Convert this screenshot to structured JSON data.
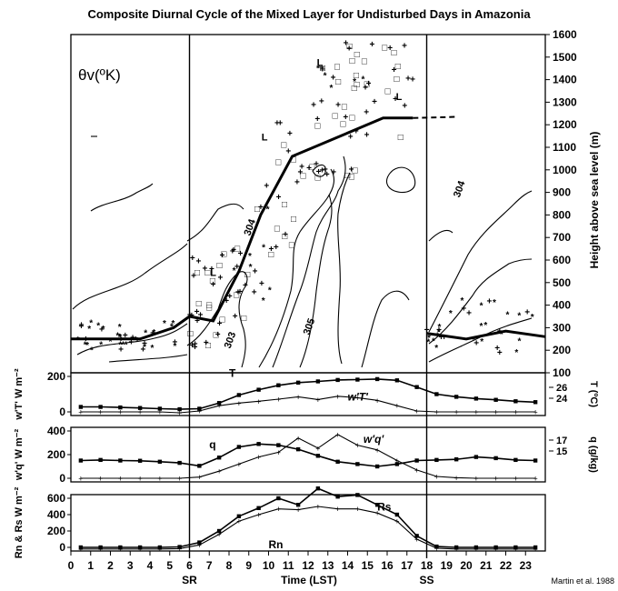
{
  "title": "Composite Diurnal Cycle of the Mixed Layer for Undisturbed Days in Amazonia",
  "credit": "Martin et al. 1988",
  "chart_data": [
    {
      "type": "line",
      "panel": "mixed-layer",
      "theta_label": "θv(ºK)",
      "ylabel": "Height above sea level (m)",
      "xlim": [
        0,
        24
      ],
      "ylim": [
        100,
        1600
      ],
      "yticks": [
        "100",
        "200",
        "300",
        "400",
        "500",
        "600",
        "700",
        "800",
        "900",
        "1000",
        "1100",
        "1200",
        "1300",
        "1400",
        "1500",
        "1600"
      ],
      "sr_label": "SR",
      "sr_x": 6,
      "ss_label": "SS",
      "ss_x": 18,
      "mixed_layer_top": {
        "x": [
          0,
          3.5,
          5.2,
          6.0,
          7.2,
          8.5,
          9.6,
          11.2,
          15.8,
          17.3
        ],
        "y": [
          250,
          250,
          300,
          350,
          330,
          550,
          800,
          1060,
          1230,
          1230
        ]
      },
      "mixed_layer_top_dashed": {
        "x": [
          17.3,
          19.5
        ],
        "y": [
          1230,
          1235
        ]
      },
      "night_layer_top": {
        "x": [
          18,
          20,
          22,
          24
        ],
        "y": [
          275,
          250,
          285,
          260
        ]
      },
      "contour_labels": [
        {
          "text": "304",
          "x": 9.2,
          "y": 740
        },
        {
          "text": "305",
          "x": 12.2,
          "y": 300
        },
        {
          "text": "303",
          "x": 8.2,
          "y": 240
        },
        {
          "text": "304",
          "x": 19.8,
          "y": 910
        }
      ],
      "inversion_marker": "L",
      "inversion_marks": [
        [
          7.2,
          530
        ],
        [
          9.8,
          1130
        ],
        [
          12.6,
          1460
        ],
        [
          16.6,
          1310
        ]
      ],
      "point_symbols": [
        "+",
        "□",
        "*"
      ]
    },
    {
      "type": "line",
      "panel": "temperature-flux",
      "ylabel": "w'T' W m⁻²",
      "ylim": [
        0,
        200
      ],
      "yticks": [
        "200",
        "0"
      ],
      "right_ticks": [
        "26",
        "24"
      ],
      "right_label": "T (ºC)",
      "series": [
        {
          "name": "T",
          "x": [
            0.5,
            1.5,
            2.5,
            3.5,
            4.5,
            5.5,
            6.5,
            7.5,
            8.5,
            9.5,
            10.5,
            11.5,
            12.5,
            13.5,
            14.5,
            15.5,
            16.5,
            17.5,
            18.5,
            19.5,
            20.5,
            21.5,
            22.5,
            23.5
          ],
          "y": [
            28,
            28,
            25,
            22,
            18,
            15,
            18,
            50,
            95,
            125,
            150,
            165,
            172,
            180,
            182,
            185,
            178,
            140,
            100,
            85,
            75,
            68,
            60,
            55
          ]
        },
        {
          "name": "w'T'",
          "x": [
            0.5,
            1.5,
            2.5,
            3.5,
            4.5,
            5.5,
            6.5,
            7.5,
            8.5,
            9.5,
            10.5,
            11.5,
            12.5,
            13.5,
            14.5,
            15.5,
            16.5,
            17.5,
            18.5,
            19.5,
            20.5,
            21.5,
            22.5,
            23.5
          ],
          "y": [
            0,
            0,
            0,
            0,
            0,
            -5,
            5,
            35,
            50,
            60,
            72,
            85,
            70,
            88,
            80,
            65,
            35,
            5,
            0,
            0,
            0,
            0,
            0,
            0
          ]
        }
      ]
    },
    {
      "type": "line",
      "panel": "moisture-flux",
      "ylabel": "w'q' W m⁻²",
      "ylim": [
        0,
        400
      ],
      "yticks": [
        "400",
        "200",
        "0"
      ],
      "right_ticks": [
        "17",
        "15"
      ],
      "right_label": "q (g/kg)",
      "series": [
        {
          "name": "q",
          "x": [
            0.5,
            1.5,
            2.5,
            3.5,
            4.5,
            5.5,
            6.5,
            7.5,
            8.5,
            9.5,
            10.5,
            11.5,
            12.5,
            13.5,
            14.5,
            15.5,
            16.5,
            17.5,
            18.5,
            19.5,
            20.5,
            21.5,
            22.5,
            23.5
          ],
          "y": [
            150,
            155,
            150,
            148,
            140,
            130,
            105,
            175,
            265,
            290,
            280,
            245,
            190,
            140,
            120,
            100,
            120,
            150,
            155,
            160,
            180,
            170,
            155,
            150
          ]
        },
        {
          "name": "w'q'",
          "x": [
            0.5,
            1.5,
            2.5,
            3.5,
            4.5,
            5.5,
            6.5,
            7.5,
            8.5,
            9.5,
            10.5,
            11.5,
            12.5,
            13.5,
            14.5,
            15.5,
            16.5,
            17.5,
            18.5,
            19.5,
            20.5,
            21.5,
            22.5,
            23.5
          ],
          "y": [
            0,
            0,
            0,
            0,
            0,
            0,
            10,
            60,
            120,
            180,
            220,
            340,
            255,
            370,
            280,
            240,
            150,
            70,
            15,
            5,
            0,
            0,
            0,
            0
          ]
        }
      ]
    },
    {
      "type": "line",
      "panel": "radiation",
      "ylabel": "Rn & Rs W m⁻²",
      "ylim": [
        0,
        600
      ],
      "yticks": [
        "600",
        "400",
        "200",
        "0"
      ],
      "xlabel": "Time (LST)",
      "xticks": [
        "0",
        "1",
        "2",
        "3",
        "4",
        "5",
        "6",
        "7",
        "8",
        "9",
        "10",
        "11",
        "12",
        "13",
        "14",
        "15",
        "16",
        "17",
        "18",
        "19",
        "20",
        "21",
        "22",
        "23"
      ],
      "series": [
        {
          "name": "Rs",
          "x": [
            0.5,
            1.5,
            2.5,
            3.5,
            4.5,
            5.5,
            6.5,
            7.5,
            8.5,
            9.5,
            10.5,
            11.5,
            12.5,
            13.5,
            14.5,
            15.5,
            16.5,
            17.5,
            18.5,
            19.5,
            20.5,
            21.5,
            22.5,
            23.5
          ],
          "y": [
            0,
            0,
            0,
            0,
            0,
            5,
            60,
            200,
            380,
            480,
            600,
            520,
            720,
            620,
            640,
            520,
            400,
            140,
            10,
            0,
            0,
            0,
            0,
            0
          ]
        },
        {
          "name": "Rn",
          "x": [
            0.5,
            1.5,
            2.5,
            3.5,
            4.5,
            5.5,
            6.5,
            7.5,
            8.5,
            9.5,
            10.5,
            11.5,
            12.5,
            13.5,
            14.5,
            15.5,
            16.5,
            17.5,
            18.5,
            19.5,
            20.5,
            21.5,
            22.5,
            23.5
          ],
          "y": [
            -20,
            -20,
            -20,
            -20,
            -20,
            -15,
            30,
            160,
            320,
            400,
            470,
            460,
            500,
            470,
            470,
            420,
            320,
            100,
            -10,
            -20,
            -20,
            -20,
            -20,
            -20
          ]
        }
      ]
    }
  ]
}
